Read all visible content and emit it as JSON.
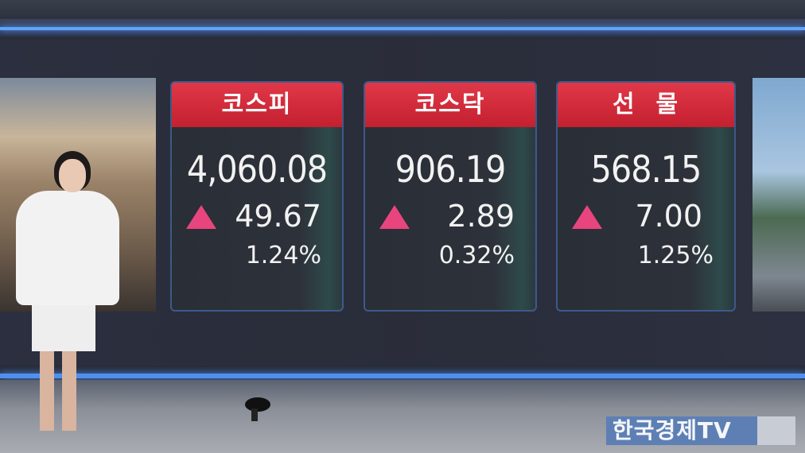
{
  "indices": [
    {
      "name": "코스피",
      "value": "4,060.08",
      "change": "49.67",
      "change_pct": "1.24%",
      "direction": "up"
    },
    {
      "name": "코스닥",
      "value": "906.19",
      "change": "2.89",
      "change_pct": "0.32%",
      "direction": "up"
    },
    {
      "name": "선  물",
      "value": "568.15",
      "change": "7.00",
      "change_pct": "1.25%",
      "direction": "up"
    }
  ],
  "colors": {
    "header_red": "#d42b3b",
    "up_triangle": "#e8457e",
    "accent_blue": "#4f90ef",
    "logo_bg": "#5d7fb4"
  },
  "broadcaster_logo": "한국경제TV"
}
